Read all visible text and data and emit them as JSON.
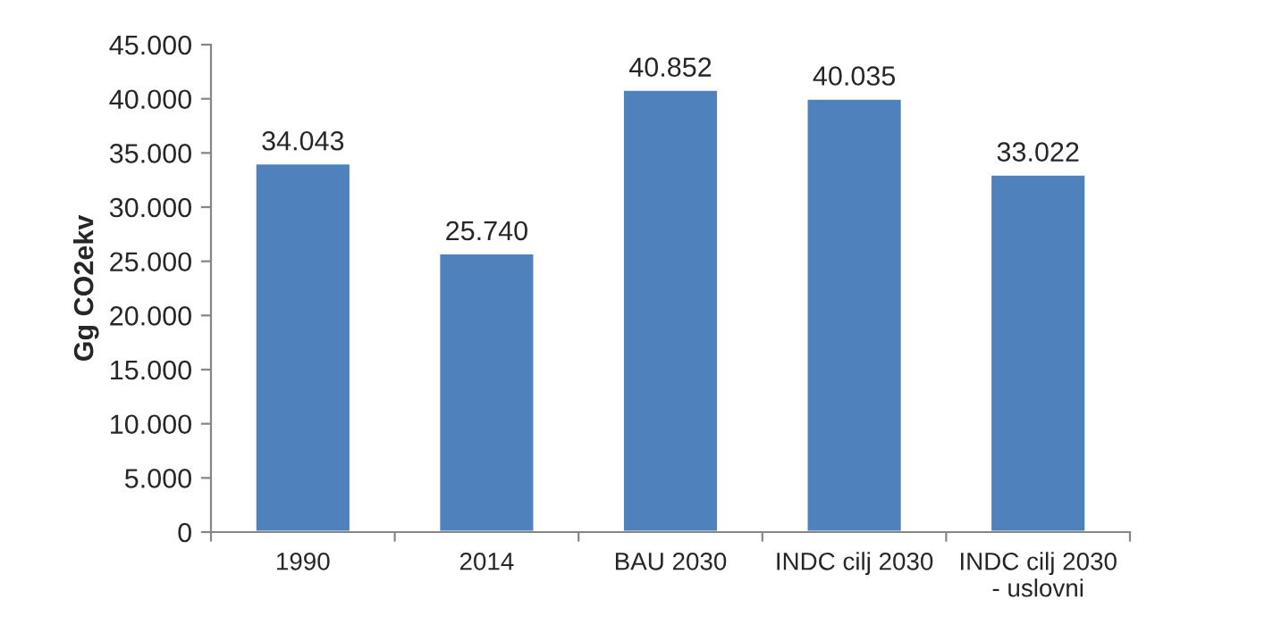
{
  "chart_data": {
    "type": "bar",
    "ylabel": "Gg CO2ekv",
    "categories": [
      "1990",
      "2014",
      "BAU 2030",
      "INDC cilj 2030",
      "INDC cilj 2030\n- uslovni"
    ],
    "values": [
      34043,
      25740,
      40852,
      40035,
      33022
    ],
    "value_labels": [
      "34.043",
      "25.740",
      "40.852",
      "40.035",
      "33.022"
    ],
    "color": "#4f81bd",
    "ylim": [
      0,
      45000
    ],
    "yticks": [
      {
        "value": 0,
        "label": "0"
      },
      {
        "value": 5000,
        "label": "5.000"
      },
      {
        "value": 10000,
        "label": "10.000"
      },
      {
        "value": 15000,
        "label": "15.000"
      },
      {
        "value": 20000,
        "label": "20.000"
      },
      {
        "value": 25000,
        "label": "25.000"
      },
      {
        "value": 30000,
        "label": "30.000"
      },
      {
        "value": 35000,
        "label": "35.000"
      },
      {
        "value": 40000,
        "label": "40.000"
      },
      {
        "value": 45000,
        "label": "45.000"
      }
    ],
    "grid": false,
    "legend": false
  }
}
